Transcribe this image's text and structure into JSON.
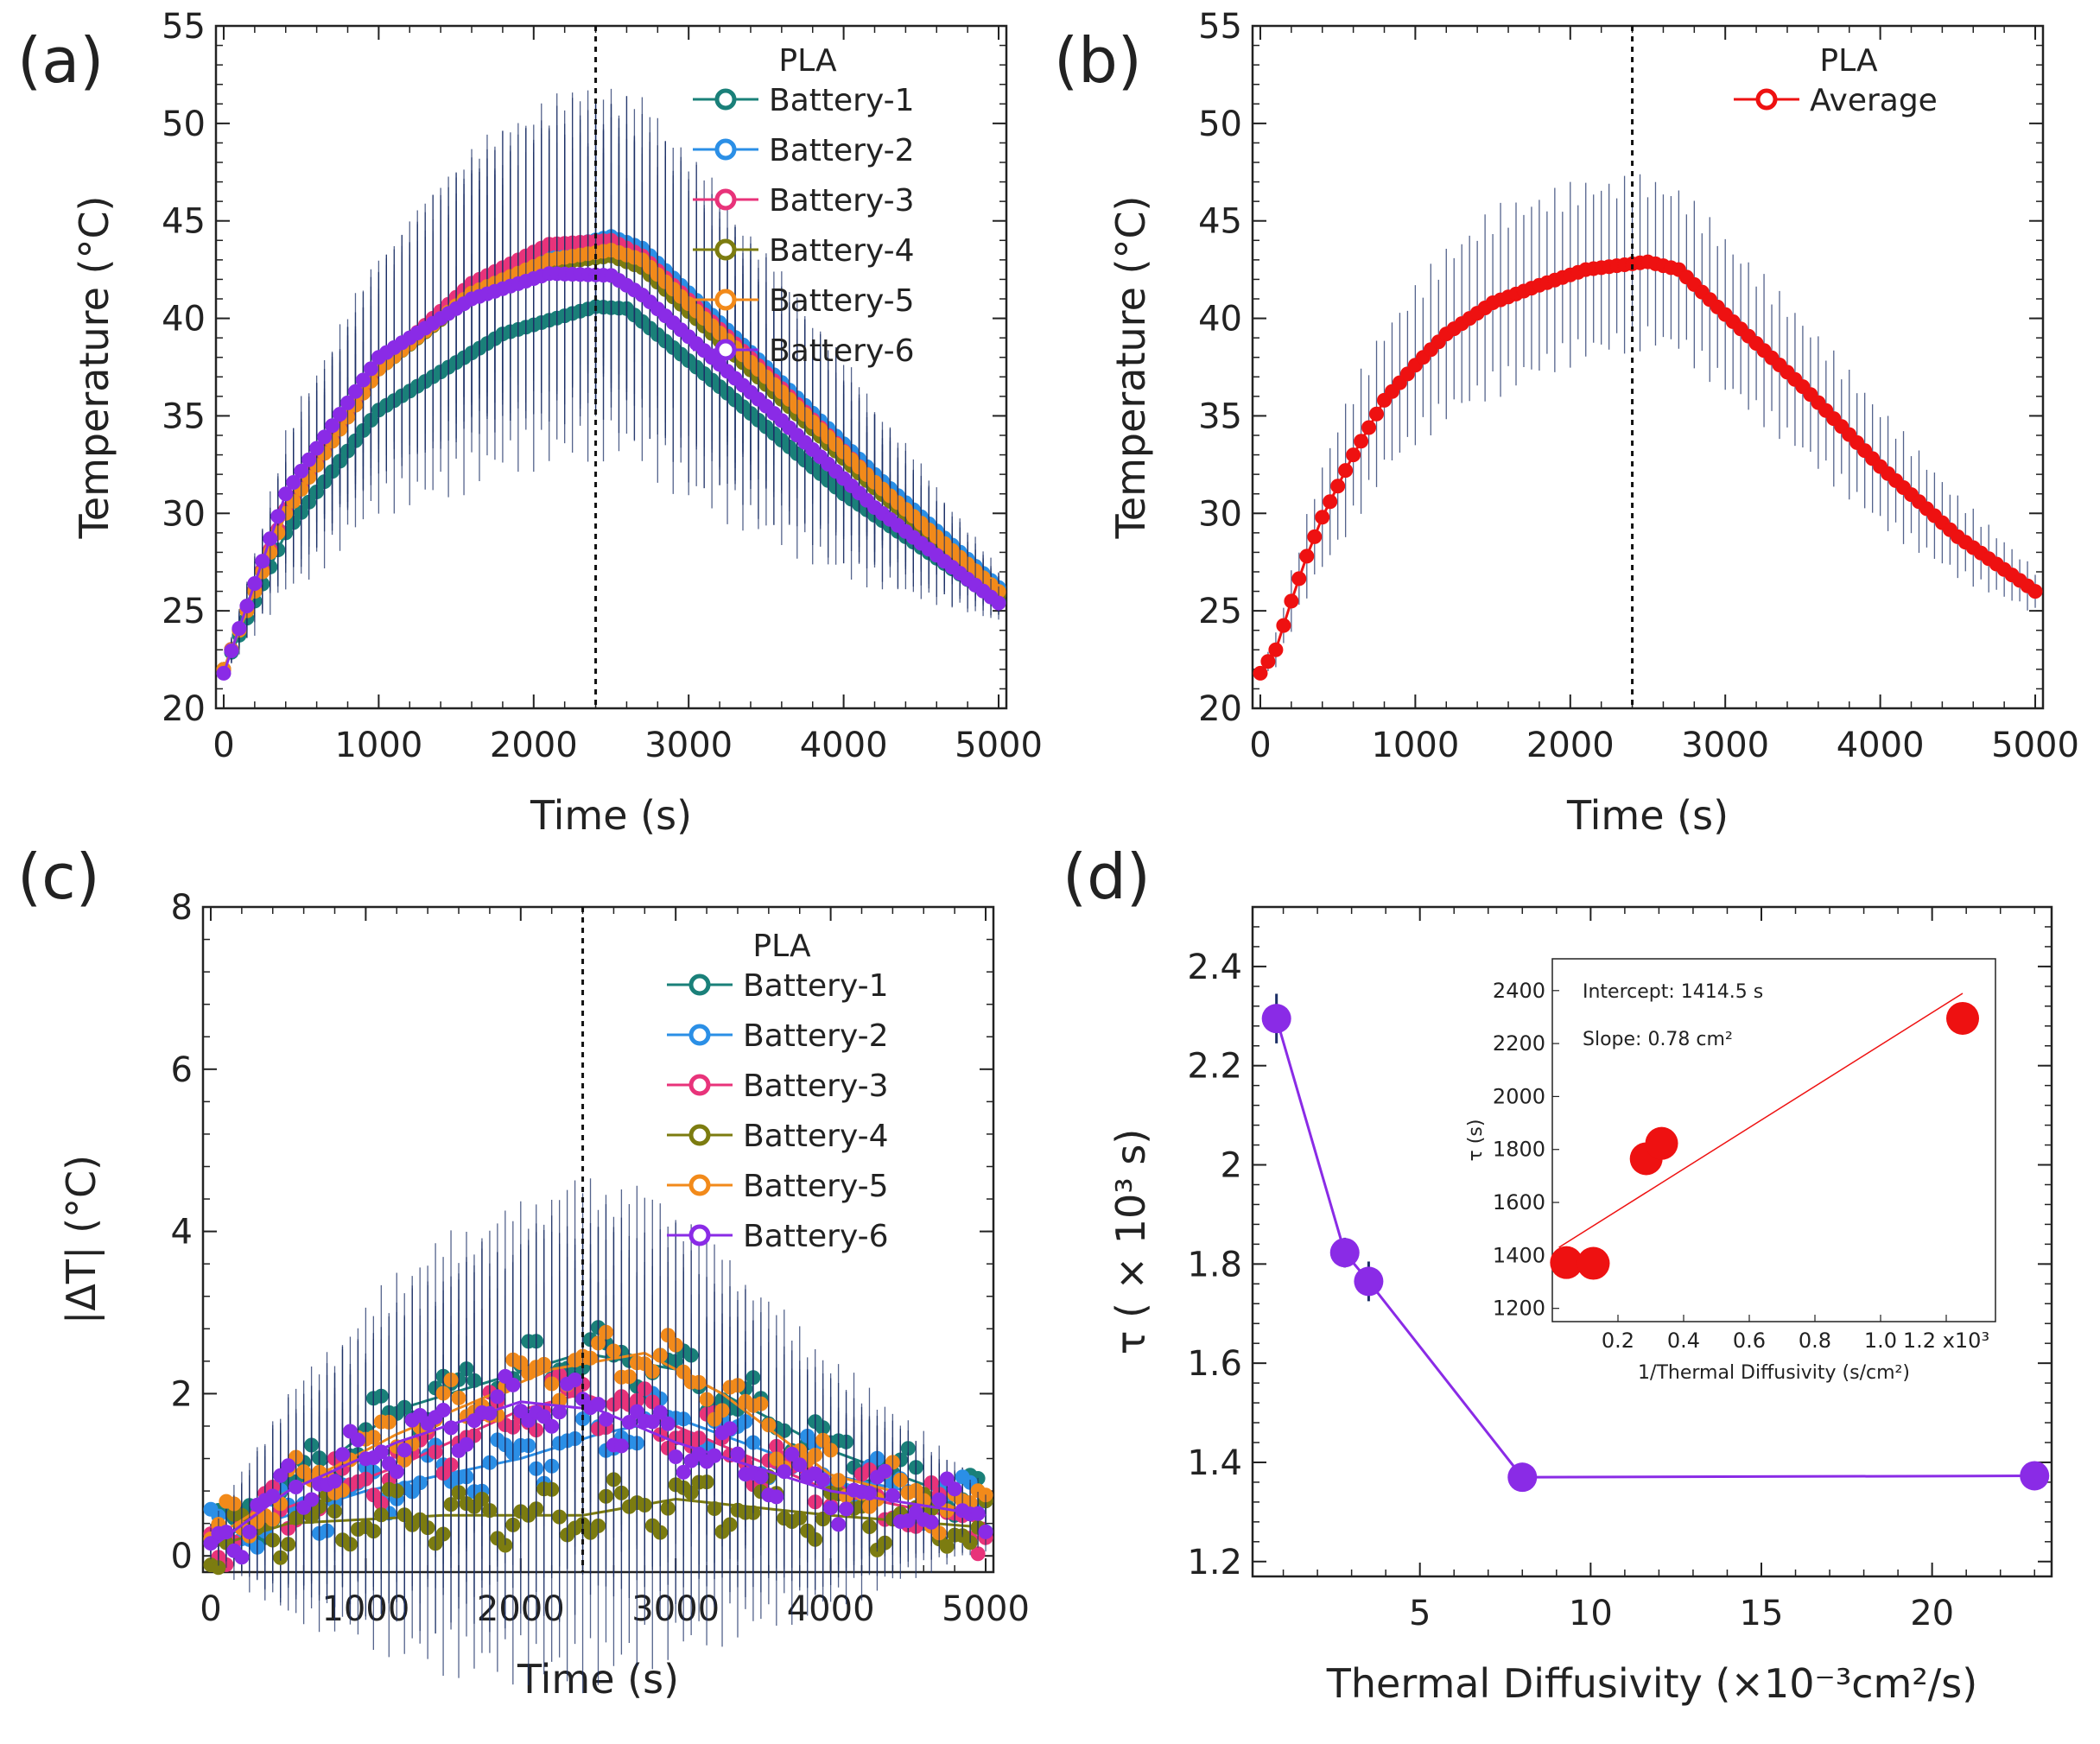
{
  "colors": {
    "Battery-1": "#1a8079",
    "Battery-2": "#2b8fe6",
    "Battery-3": "#e8337a",
    "Battery-4": "#7c7c10",
    "Battery-5": "#f28a1a",
    "Battery-6": "#8a2be6",
    "average": "#ee1111",
    "errorbar": "#1b2f66",
    "tau_series": "#8a2be6",
    "inset_points": "#ee1111"
  },
  "chart_data": [
    {
      "id": "a",
      "type": "line",
      "panel_label": "(a)",
      "title": "",
      "xlabel": "Time (s)",
      "ylabel": "Temperature (°C)",
      "xlim": [
        -50,
        5050
      ],
      "ylim": [
        20,
        55
      ],
      "xticks": [
        "0",
        "1000",
        "2000",
        "3000",
        "4000",
        "5000"
      ],
      "yticks": [
        "20",
        "25",
        "30",
        "35",
        "40",
        "45",
        "50",
        "55"
      ],
      "vline_x": 2400,
      "legend_title": "PLA",
      "legend_position": "top-right",
      "x_step": 50,
      "series": [
        {
          "name": "Battery-1",
          "key_points": [
            [
              0,
              22
            ],
            [
              400,
              29
            ],
            [
              1000,
              35.3
            ],
            [
              1800,
              39.2
            ],
            [
              2400,
              40.6
            ],
            [
              2600,
              40.5
            ],
            [
              3200,
              36.5
            ],
            [
              4000,
              31
            ],
            [
              5000,
              25.5
            ]
          ]
        },
        {
          "name": "Battery-2",
          "key_points": [
            [
              0,
              22
            ],
            [
              400,
              30.2
            ],
            [
              1000,
              37.5
            ],
            [
              1600,
              41.5
            ],
            [
              2100,
              43.5
            ],
            [
              2500,
              44.2
            ],
            [
              2700,
              43.6
            ],
            [
              3500,
              37.5
            ],
            [
              4200,
              32
            ],
            [
              5000,
              26.2
            ]
          ]
        },
        {
          "name": "Battery-3",
          "key_points": [
            [
              0,
              22
            ],
            [
              400,
              30.2
            ],
            [
              1000,
              37.5
            ],
            [
              1600,
              41.8
            ],
            [
              2100,
              43.8
            ],
            [
              2500,
              44
            ],
            [
              2700,
              43.2
            ],
            [
              3500,
              37.2
            ],
            [
              4200,
              31.6
            ],
            [
              5000,
              25.9
            ]
          ]
        },
        {
          "name": "Battery-4",
          "key_points": [
            [
              0,
              22
            ],
            [
              400,
              30
            ],
            [
              1000,
              37.4
            ],
            [
              1600,
              41.2
            ],
            [
              2100,
              42.8
            ],
            [
              2500,
              43.2
            ],
            [
              2700,
              42.6
            ],
            [
              3500,
              36.6
            ],
            [
              4200,
              31.3
            ],
            [
              5000,
              25.8
            ]
          ]
        },
        {
          "name": "Battery-5",
          "key_points": [
            [
              0,
              22
            ],
            [
              400,
              30
            ],
            [
              1000,
              37.4
            ],
            [
              1600,
              41.3
            ],
            [
              2100,
              43
            ],
            [
              2500,
              43.5
            ],
            [
              2700,
              43
            ],
            [
              3500,
              37
            ],
            [
              4200,
              31.6
            ],
            [
              5000,
              26
            ]
          ]
        },
        {
          "name": "Battery-6",
          "key_points": [
            [
              0,
              21.8
            ],
            [
              400,
              31
            ],
            [
              1000,
              38
            ],
            [
              1600,
              41
            ],
            [
              2100,
              42.3
            ],
            [
              2500,
              42.2
            ],
            [
              2700,
              41.2
            ],
            [
              3500,
              35.5
            ],
            [
              4200,
              30.3
            ],
            [
              5000,
              25.4
            ]
          ]
        }
      ],
      "error_half_width_key_points": [
        [
          0,
          0.3
        ],
        [
          500,
          4
        ],
        [
          1500,
          7
        ],
        [
          2400,
          8
        ],
        [
          3000,
          7.5
        ],
        [
          4000,
          4.5
        ],
        [
          5000,
          1
        ]
      ]
    },
    {
      "id": "b",
      "type": "line",
      "panel_label": "(b)",
      "title": "",
      "xlabel": "Time (s)",
      "ylabel": "Temperature (°C)",
      "xlim": [
        -50,
        5050
      ],
      "ylim": [
        20,
        55
      ],
      "xticks": [
        "0",
        "1000",
        "2000",
        "3000",
        "4000",
        "5000"
      ],
      "yticks": [
        "20",
        "25",
        "30",
        "35",
        "40",
        "45",
        "50",
        "55"
      ],
      "vline_x": 2400,
      "legend_title": "PLA",
      "legend_position": "top-right",
      "x_step": 50,
      "series": [
        {
          "name": "Average",
          "key_points": [
            [
              0,
              21.8
            ],
            [
              100,
              23
            ],
            [
              200,
              25.5
            ],
            [
              300,
              27.8
            ],
            [
              400,
              29.8
            ],
            [
              600,
              33
            ],
            [
              800,
              35.8
            ],
            [
              1000,
              37.6
            ],
            [
              1200,
              39.2
            ],
            [
              1500,
              40.8
            ],
            [
              1800,
              41.7
            ],
            [
              2100,
              42.5
            ],
            [
              2400,
              42.8
            ],
            [
              2500,
              42.9
            ],
            [
              2700,
              42.5
            ],
            [
              3000,
              40.2
            ],
            [
              3500,
              36.5
            ],
            [
              4000,
              32.4
            ],
            [
              4500,
              28.8
            ],
            [
              5000,
              26
            ]
          ]
        }
      ],
      "error_half_width_key_points": [
        [
          0,
          0.3
        ],
        [
          500,
          3.5
        ],
        [
          1500,
          5
        ],
        [
          2400,
          4.6
        ],
        [
          3000,
          4.2
        ],
        [
          4000,
          3.2
        ],
        [
          5000,
          1.2
        ]
      ]
    },
    {
      "id": "c",
      "type": "line",
      "panel_label": "(c)",
      "title": "",
      "xlabel": "Time (s)",
      "ylabel": "|ΔT| (°C)",
      "xlim": [
        -50,
        5050
      ],
      "ylim": [
        -0.2,
        8
      ],
      "xticks": [
        "0",
        "1000",
        "2000",
        "3000",
        "4000",
        "5000"
      ],
      "yticks": [
        "0",
        "2",
        "4",
        "6",
        "8"
      ],
      "vline_x": 2400,
      "legend_title": "PLA",
      "legend_position": "top-right",
      "x_step": 50,
      "series": [
        {
          "name": "Battery-1",
          "key_points": [
            [
              0,
              0.2
            ],
            [
              500,
              0.8
            ],
            [
              1200,
              1.8
            ],
            [
              2400,
              2.5
            ],
            [
              3000,
              2.3
            ],
            [
              4000,
              1.3
            ],
            [
              5000,
              0.6
            ]
          ]
        },
        {
          "name": "Battery-2",
          "key_points": [
            [
              0,
              0.2
            ],
            [
              500,
              0.5
            ],
            [
              1000,
              0.8
            ],
            [
              2000,
              1.2
            ],
            [
              2500,
              1.5
            ],
            [
              3000,
              1.7
            ],
            [
              4000,
              1
            ],
            [
              5000,
              0.6
            ]
          ]
        },
        {
          "name": "Battery-3",
          "key_points": [
            [
              0,
              0.2
            ],
            [
              500,
              0.6
            ],
            [
              1200,
              1.1
            ],
            [
              2000,
              1.8
            ],
            [
              2400,
              2
            ],
            [
              3000,
              1.6
            ],
            [
              4000,
              0.8
            ],
            [
              5000,
              0.4
            ]
          ]
        },
        {
          "name": "Battery-4",
          "key_points": [
            [
              0,
              0.1
            ],
            [
              500,
              0.4
            ],
            [
              1500,
              0.5
            ],
            [
              2400,
              0.5
            ],
            [
              3000,
              0.7
            ],
            [
              4000,
              0.5
            ],
            [
              5000,
              0.35
            ]
          ]
        },
        {
          "name": "Battery-5",
          "key_points": [
            [
              0,
              0.2
            ],
            [
              500,
              0.8
            ],
            [
              1200,
              1.5
            ],
            [
              2200,
              2.3
            ],
            [
              2800,
              2.5
            ],
            [
              3300,
              2
            ],
            [
              4000,
              1
            ],
            [
              5000,
              0.5
            ]
          ]
        },
        {
          "name": "Battery-6",
          "key_points": [
            [
              0,
              0.1
            ],
            [
              500,
              0.8
            ],
            [
              1200,
              1.4
            ],
            [
              2000,
              1.9
            ],
            [
              2500,
              1.8
            ],
            [
              3000,
              1.4
            ],
            [
              4000,
              0.8
            ],
            [
              5000,
              0.5
            ]
          ]
        }
      ],
      "error_half_width_key_points": [
        [
          0,
          0.2
        ],
        [
          500,
          1.2
        ],
        [
          1500,
          2
        ],
        [
          2400,
          2.2
        ],
        [
          3000,
          2
        ],
        [
          4000,
          1.2
        ],
        [
          5000,
          0.3
        ]
      ]
    },
    {
      "id": "d",
      "type": "line",
      "panel_label": "(d)",
      "title": "",
      "xlabel": "Thermal Diffusivity (×10⁻³cm²/s)",
      "ylabel": "τ ( × 10³ s)",
      "xlim": [
        0.1,
        23.5
      ],
      "ylim": [
        1.17,
        2.52
      ],
      "xticks": [
        "5",
        "10",
        "15",
        "20"
      ],
      "yticks": [
        "1.2",
        "1.4",
        "1.6",
        "1.8",
        "2",
        "2.2",
        "2.4"
      ],
      "series": [
        {
          "name": "PLA",
          "x": [
            0.8,
            2.8,
            3.5,
            8.0,
            23.0
          ],
          "y": [
            2.295,
            1.823,
            1.765,
            1.37,
            1.373
          ],
          "yerr": [
            0.05,
            0.03,
            0.04,
            0.008,
            0.008
          ]
        }
      ],
      "inset": {
        "type": "scatter",
        "xlabel": "1/Thermal Diffusivity (s/cm²)",
        "ylabel": "τ (s)",
        "xlim": [
          0,
          1.35
        ],
        "ylim": [
          1150,
          2520
        ],
        "xticks": [
          "0.2",
          "0.4",
          "0.6",
          "0.8",
          "1.0",
          "1.2 x10³"
        ],
        "yticks": [
          "1200",
          "1400",
          "1600",
          "1800",
          "2000",
          "2200",
          "2400"
        ],
        "annotation_intercept": "Intercept: 1414.5 s",
        "annotation_slope": "Slope: 0.78 cm²",
        "points_x": [
          0.043,
          0.125,
          0.286,
          0.333,
          1.25
        ],
        "points_y": [
          1373,
          1370,
          1765,
          1823,
          2295
        ],
        "fit_intercept": 1414.5,
        "fit_slope": 780
      }
    }
  ]
}
